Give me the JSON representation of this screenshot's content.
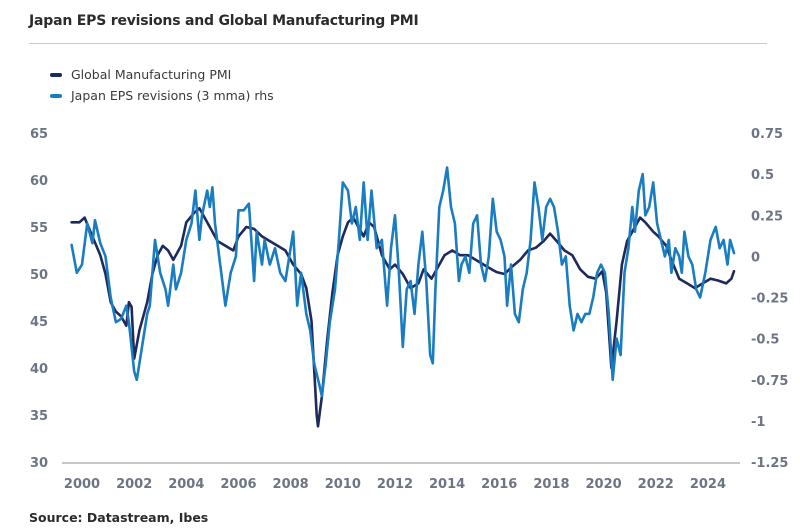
{
  "header": {
    "title": "Japan EPS revisions and Global Manufacturing PMI"
  },
  "footer": {
    "source": "Source: Datastream, Ibes"
  },
  "colors": {
    "pmi": "#1f2a5c",
    "eps": "#1a7cc1",
    "axis": "#8a8f99",
    "tick_text": "#6d7585"
  },
  "chart_data": {
    "type": "line",
    "title": "Japan EPS revisions and Global Manufacturing PMI",
    "xlabel": "",
    "ylabel": "",
    "y2label": "",
    "legend_position": "top-left",
    "grid": false,
    "xlim": [
      1999.5,
      2025.2
    ],
    "ylim": [
      30,
      65
    ],
    "y2lim": [
      -1.25,
      0.75
    ],
    "x_ticks": [
      "2000",
      "2002",
      "2004",
      "2006",
      "2008",
      "2010",
      "2012",
      "2014",
      "2016",
      "2018",
      "2020",
      "2022",
      "2024"
    ],
    "y_ticks": [
      "65",
      "60",
      "55",
      "50",
      "45",
      "40",
      "35",
      "30"
    ],
    "y2_ticks": [
      "0.75",
      "0.5",
      "0.25",
      "0",
      "-0.25",
      "-0.5",
      "-0.75",
      "-1",
      "-1.25"
    ],
    "series": [
      {
        "name": "Global Manufacturing PMI",
        "axis": "left",
        "x": [
          1999.6,
          1999.9,
          2000.1,
          2000.4,
          2000.7,
          2000.9,
          2001.1,
          2001.3,
          2001.5,
          2001.7,
          2001.8,
          2001.9,
          2002.0,
          2002.2,
          2002.5,
          2002.7,
          2002.9,
          2003.1,
          2003.3,
          2003.5,
          2003.8,
          2004.0,
          2004.3,
          2004.5,
          2004.7,
          2004.9,
          2005.2,
          2005.5,
          2005.8,
          2006.0,
          2006.3,
          2006.6,
          2006.9,
          2007.2,
          2007.5,
          2007.8,
          2008.1,
          2008.4,
          2008.6,
          2008.8,
          2008.9,
          2009.0,
          2009.05,
          2009.2,
          2009.4,
          2009.6,
          2009.8,
          2010.0,
          2010.2,
          2010.4,
          2010.6,
          2010.8,
          2011.0,
          2011.2,
          2011.5,
          2011.8,
          2012.0,
          2012.3,
          2012.6,
          2012.9,
          2013.1,
          2013.4,
          2013.7,
          2013.9,
          2014.2,
          2014.5,
          2014.8,
          2015.1,
          2015.4,
          2015.7,
          2015.9,
          2016.2,
          2016.5,
          2016.8,
          2017.1,
          2017.4,
          2017.7,
          2017.95,
          2018.2,
          2018.5,
          2018.8,
          2019.1,
          2019.4,
          2019.7,
          2019.95,
          2020.1,
          2020.3,
          2020.5,
          2020.7,
          2020.9,
          2021.2,
          2021.4,
          2021.6,
          2021.9,
          2022.1,
          2022.4,
          2022.6,
          2022.9,
          2023.2,
          2023.5,
          2023.8,
          2024.1,
          2024.4,
          2024.7,
          2024.9,
          2025.0
        ],
        "values": [
          55.5,
          55.5,
          56,
          54,
          52,
          50,
          47,
          46,
          45.5,
          44.5,
          47,
          46.5,
          41,
          44,
          47,
          50,
          52,
          53,
          52.5,
          51.5,
          53,
          55.5,
          56.5,
          57,
          56,
          55,
          53.5,
          53,
          52.5,
          54,
          55,
          54.8,
          54,
          53.5,
          53,
          52.5,
          51,
          50,
          48.5,
          45,
          40,
          35,
          33.8,
          37,
          43,
          48,
          52,
          54,
          55.5,
          56,
          55,
          54,
          55.5,
          55,
          52,
          50.5,
          51,
          50,
          48.5,
          49,
          50.5,
          49.5,
          51,
          52,
          52.5,
          52,
          52,
          51.5,
          51,
          50.5,
          50.2,
          50,
          50.8,
          51.5,
          52.5,
          52.8,
          53.5,
          54.3,
          53.5,
          52.5,
          52,
          50.5,
          49.7,
          49.5,
          50.3,
          48,
          40,
          45,
          51,
          53.5,
          55,
          56,
          55.5,
          54.5,
          54,
          53,
          51.5,
          49.5,
          49,
          48.5,
          49,
          49.5,
          49.3,
          49,
          49.5,
          50.3
        ]
      },
      {
        "name": "Japan EPS revisions (3 mma) rhs",
        "axis": "right",
        "x": [
          1999.6,
          1999.8,
          2000.0,
          2000.2,
          2000.4,
          2000.5,
          2000.7,
          2000.9,
          2001.1,
          2001.3,
          2001.5,
          2001.7,
          2001.8,
          2002.0,
          2002.1,
          2002.3,
          2002.5,
          2002.6,
          2002.8,
          2003.0,
          2003.2,
          2003.3,
          2003.5,
          2003.6,
          2003.8,
          2004.0,
          2004.2,
          2004.35,
          2004.5,
          2004.6,
          2004.8,
          2004.9,
          2005.0,
          2005.1,
          2005.3,
          2005.5,
          2005.7,
          2005.9,
          2006.0,
          2006.2,
          2006.4,
          2006.6,
          2006.7,
          2006.9,
          2007.0,
          2007.2,
          2007.4,
          2007.6,
          2007.8,
          2008.0,
          2008.1,
          2008.25,
          2008.4,
          2008.6,
          2008.75,
          2008.9,
          2009.1,
          2009.2,
          2009.35,
          2009.5,
          2009.7,
          2009.85,
          2010.0,
          2010.2,
          2010.35,
          2010.5,
          2010.65,
          2010.8,
          2010.95,
          2011.1,
          2011.3,
          2011.5,
          2011.7,
          2011.85,
          2012.0,
          2012.15,
          2012.3,
          2012.45,
          2012.6,
          2012.75,
          2012.9,
          2013.05,
          2013.2,
          2013.35,
          2013.45,
          2013.55,
          2013.7,
          2013.85,
          2014.0,
          2014.15,
          2014.3,
          2014.45,
          2014.55,
          2014.7,
          2014.85,
          2015.0,
          2015.15,
          2015.3,
          2015.45,
          2015.6,
          2015.75,
          2015.9,
          2016.05,
          2016.2,
          2016.3,
          2016.45,
          2016.6,
          2016.75,
          2016.9,
          2017.05,
          2017.2,
          2017.35,
          2017.5,
          2017.65,
          2017.8,
          2017.95,
          2018.1,
          2018.25,
          2018.4,
          2018.55,
          2018.7,
          2018.85,
          2019.0,
          2019.15,
          2019.3,
          2019.45,
          2019.6,
          2019.75,
          2019.9,
          2020.05,
          2020.2,
          2020.35,
          2020.5,
          2020.65,
          2020.8,
          2020.95,
          2021.1,
          2021.2,
          2021.35,
          2021.5,
          2021.6,
          2021.75,
          2021.9,
          2022.05,
          2022.2,
          2022.35,
          2022.5,
          2022.6,
          2022.75,
          2022.9,
          2023.0,
          2023.1,
          2023.25,
          2023.4,
          2023.55,
          2023.7,
          2023.9,
          2024.1,
          2024.3,
          2024.45,
          2024.6,
          2024.75,
          2024.85,
          2025.0
        ],
        "values": [
          0.07,
          -0.1,
          -0.05,
          0.2,
          0.08,
          0.22,
          0.08,
          0.0,
          -0.25,
          -0.4,
          -0.38,
          -0.3,
          -0.4,
          -0.7,
          -0.75,
          -0.55,
          -0.35,
          -0.3,
          0.1,
          -0.1,
          -0.2,
          -0.3,
          -0.05,
          -0.2,
          -0.1,
          0.1,
          0.2,
          0.4,
          0.1,
          0.25,
          0.4,
          0.3,
          0.42,
          0.2,
          -0.05,
          -0.3,
          -0.1,
          0.0,
          0.28,
          0.28,
          0.32,
          -0.15,
          0.15,
          -0.05,
          0.1,
          -0.05,
          0.05,
          -0.1,
          -0.15,
          0.05,
          0.15,
          -0.3,
          -0.1,
          -0.35,
          -0.45,
          -0.65,
          -0.78,
          -0.85,
          -0.65,
          -0.4,
          -0.2,
          0.1,
          0.45,
          0.4,
          0.2,
          0.3,
          0.1,
          0.45,
          0.1,
          0.4,
          0.05,
          0.1,
          -0.3,
          0.05,
          0.25,
          -0.1,
          -0.55,
          -0.2,
          -0.15,
          -0.35,
          -0.05,
          0.15,
          -0.15,
          -0.6,
          -0.65,
          -0.2,
          0.3,
          0.4,
          0.54,
          0.3,
          0.2,
          -0.15,
          -0.05,
          0.0,
          -0.1,
          0.2,
          0.25,
          -0.05,
          -0.15,
          0.0,
          0.35,
          0.15,
          0.1,
          0.0,
          -0.3,
          -0.05,
          -0.35,
          -0.4,
          -0.2,
          -0.1,
          0.1,
          0.45,
          0.3,
          0.1,
          0.3,
          0.35,
          0.3,
          0.15,
          -0.05,
          0.0,
          -0.3,
          -0.45,
          -0.35,
          -0.4,
          -0.35,
          -0.35,
          -0.25,
          -0.1,
          -0.05,
          -0.1,
          -0.35,
          -0.75,
          -0.5,
          -0.6,
          -0.1,
          0.05,
          0.3,
          0.15,
          0.4,
          0.5,
          0.25,
          0.3,
          0.45,
          0.2,
          0.1,
          0.0,
          0.1,
          -0.1,
          0.05,
          0.0,
          -0.1,
          0.15,
          0.0,
          -0.05,
          -0.2,
          -0.25,
          -0.1,
          0.1,
          0.18,
          0.05,
          0.1,
          -0.05,
          0.1,
          0.02
        ]
      }
    ]
  }
}
